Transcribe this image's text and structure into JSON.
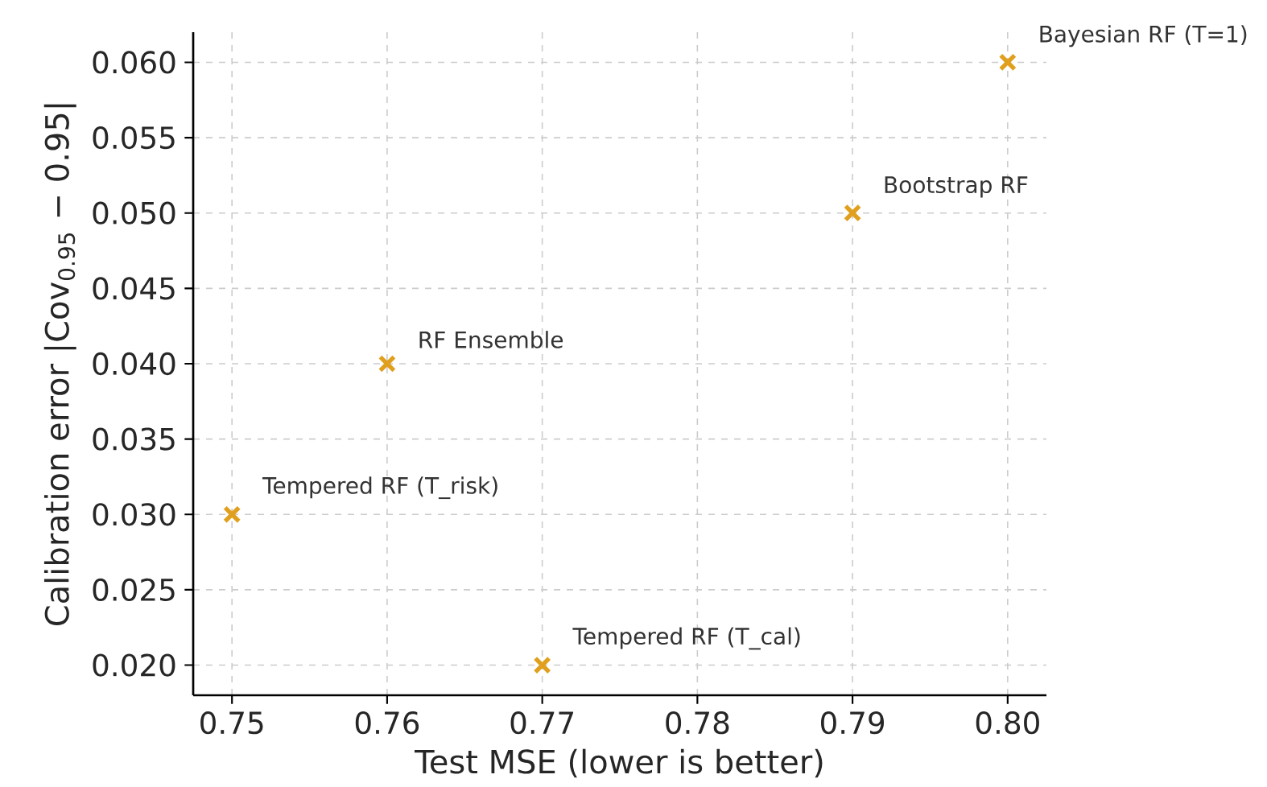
{
  "chart_data": {
    "type": "scatter",
    "xlabel": "Test MSE (lower is better)",
    "ylabel": "Calibration error |Cov$_{0.95}$ − 0.95|",
    "series": [
      {
        "color": "#e0a01e",
        "x": [
          0.75,
          0.76,
          0.77,
          0.79,
          0.8
        ],
        "values": [
          0.03,
          0.04,
          0.02,
          0.05,
          0.06
        ]
      }
    ],
    "marker": "cross",
    "grid": true,
    "xlim": [
      0.7475,
      0.8025
    ],
    "ylim": [
      0.018,
      0.062
    ],
    "xticks": [
      0.75,
      0.76,
      0.77,
      0.78,
      0.79,
      {
        "value": 0.8,
        "label": "0.80"
      }
    ],
    "yticks": [
      {
        "value": 0.02,
        "label": "0.020"
      },
      {
        "value": 0.025,
        "label": "0.025"
      },
      {
        "value": 0.03,
        "label": "0.030"
      },
      {
        "value": 0.035,
        "label": "0.035"
      },
      {
        "value": 0.04,
        "label": "0.040"
      },
      {
        "value": 0.045,
        "label": "0.045"
      },
      {
        "value": 0.05,
        "label": "0.050"
      },
      {
        "value": 0.055,
        "label": "0.055"
      },
      {
        "value": 0.06,
        "label": "0.060"
      }
    ],
    "annotations": [
      {
        "text": "Tempered RF (T_risk)",
        "x": 0.75,
        "y": 0.03
      },
      {
        "text": "RF Ensemble",
        "x": 0.76,
        "y": 0.04
      },
      {
        "text": "Tempered RF (T_cal)",
        "x": 0.77,
        "y": 0.02
      },
      {
        "text": "Bootstrap RF",
        "x": 0.79,
        "y": 0.05
      },
      {
        "text": "Bayesian RF (T=1)",
        "x": 0.8,
        "y": 0.06
      }
    ]
  }
}
